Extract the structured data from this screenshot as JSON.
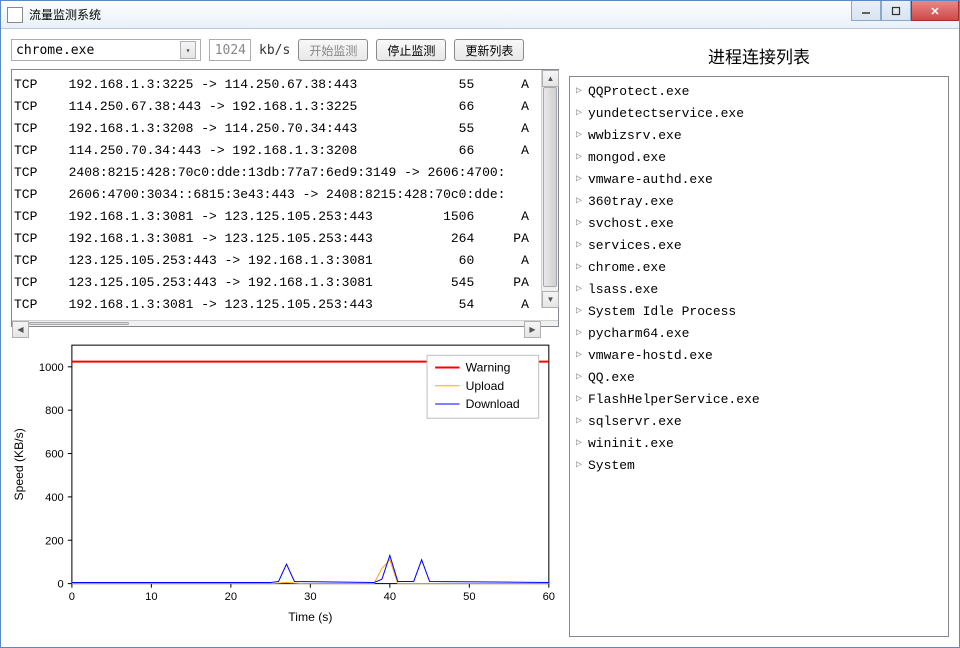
{
  "window": {
    "title": "流量监测系统"
  },
  "toolbar": {
    "process_selected": "chrome.exe",
    "threshold": "1024",
    "unit": "kb/s",
    "start_label": "开始监测",
    "stop_label": "停止监测",
    "refresh_label": "更新列表"
  },
  "log_rows": [
    {
      "proto": "TCP",
      "src": "192.168.1.3:3225",
      "dst": "114.250.67.38:443",
      "bytes": "55",
      "flag": "A"
    },
    {
      "proto": "TCP",
      "src": "114.250.67.38:443",
      "dst": "192.168.1.3:3225",
      "bytes": "66",
      "flag": "A"
    },
    {
      "proto": "TCP",
      "src": "192.168.1.3:3208",
      "dst": "114.250.70.34:443",
      "bytes": "55",
      "flag": "A"
    },
    {
      "proto": "TCP",
      "src": "114.250.70.34:443",
      "dst": "192.168.1.3:3208",
      "bytes": "66",
      "flag": "A"
    },
    {
      "proto": "TCP",
      "src": "2408:8215:428:70c0:dde:13db:77a7:6ed9:3149",
      "dst": "2606:4700:",
      "bytes": "",
      "flag": ""
    },
    {
      "proto": "TCP",
      "src": "2606:4700:3034::6815:3e43:443",
      "dst": "2408:8215:428:70c0:dde:",
      "bytes": "",
      "flag": ""
    },
    {
      "proto": "TCP",
      "src": "192.168.1.3:3081",
      "dst": "123.125.105.253:443",
      "bytes": "1506",
      "flag": "A"
    },
    {
      "proto": "TCP",
      "src": "192.168.1.3:3081",
      "dst": "123.125.105.253:443",
      "bytes": "264",
      "flag": "PA"
    },
    {
      "proto": "TCP",
      "src": "123.125.105.253:443",
      "dst": "192.168.1.3:3081",
      "bytes": "60",
      "flag": "A"
    },
    {
      "proto": "TCP",
      "src": "123.125.105.253:443",
      "dst": "192.168.1.3:3081",
      "bytes": "545",
      "flag": "PA"
    },
    {
      "proto": "TCP",
      "src": "192.168.1.3:3081",
      "dst": "123.125.105.253:443",
      "bytes": "54",
      "flag": "A"
    }
  ],
  "chart": {
    "type": "line",
    "xlabel": "Time (s)",
    "ylabel": "Speed (KB/s)",
    "xlim": [
      0,
      60
    ],
    "ylim": [
      0,
      1100
    ],
    "xticks": [
      0,
      10,
      20,
      30,
      40,
      50,
      60
    ],
    "yticks": [
      0,
      200,
      400,
      600,
      800,
      1000
    ],
    "series": [
      {
        "name": "Warning",
        "color": "#ff0000",
        "width": 2,
        "points": [
          [
            0,
            1024
          ],
          [
            60,
            1024
          ]
        ]
      },
      {
        "name": "Upload",
        "color": "#ffa500",
        "width": 1,
        "points": [
          [
            0,
            0
          ],
          [
            25,
            0
          ],
          [
            27,
            5
          ],
          [
            29,
            0
          ],
          [
            38,
            0
          ],
          [
            39,
            70
          ],
          [
            40,
            110
          ],
          [
            41,
            0
          ],
          [
            60,
            0
          ]
        ]
      },
      {
        "name": "Download",
        "color": "#0000ff",
        "width": 1,
        "points": [
          [
            0,
            5
          ],
          [
            25,
            5
          ],
          [
            26,
            10
          ],
          [
            27,
            90
          ],
          [
            28,
            10
          ],
          [
            38,
            5
          ],
          [
            39,
            20
          ],
          [
            40,
            130
          ],
          [
            41,
            10
          ],
          [
            43,
            10
          ],
          [
            44,
            110
          ],
          [
            45,
            10
          ],
          [
            60,
            5
          ]
        ]
      }
    ],
    "legend_pos": "upper-right",
    "background_color": "#ffffff",
    "axis_fontsize": 11,
    "label_fontsize": 12
  },
  "process_list": {
    "title": "进程连接列表",
    "items": [
      "QQProtect.exe",
      "yundetectservice.exe",
      "wwbizsrv.exe",
      "mongod.exe",
      "vmware-authd.exe",
      "360tray.exe",
      "svchost.exe",
      "services.exe",
      "chrome.exe",
      "lsass.exe",
      "System Idle Process",
      "pycharm64.exe",
      "vmware-hostd.exe",
      "QQ.exe",
      "FlashHelperService.exe",
      "sqlservr.exe",
      "wininit.exe",
      "System"
    ]
  }
}
